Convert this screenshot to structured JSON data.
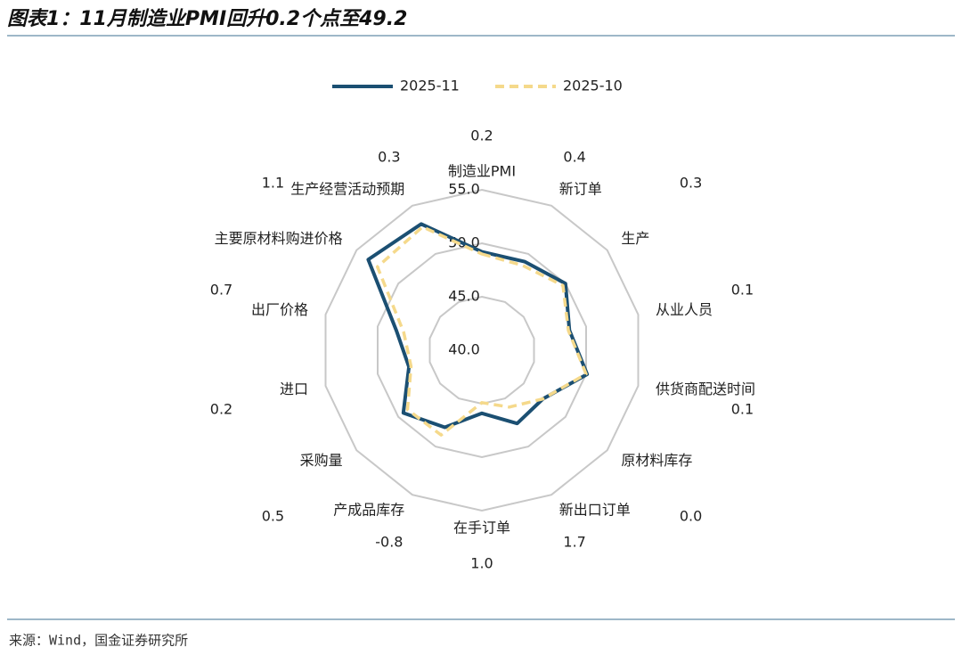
{
  "header": {
    "title": "图表1：11月制造业PMI回升0.2个点至49.2"
  },
  "chart_data": {
    "type": "radar",
    "categories": [
      "制造业PMI",
      "新订单",
      "生产",
      "从业人员",
      "供货商配送时间",
      "原材料库存",
      "新出口订单",
      "在手订单",
      "产成品库存",
      "采购量",
      "进口",
      "出厂价格",
      "主要原材料购进价格",
      "生产经营活动预期"
    ],
    "series": [
      {
        "name": "2025-11",
        "color": "#1b4f72",
        "dash": false,
        "values": [
          49.2,
          49.2,
          50.0,
          48.4,
          50.1,
          47.3,
          47.6,
          45.9,
          48.0,
          49.4,
          47.0,
          48.2,
          53.6,
          53.1
        ]
      },
      {
        "name": "2025-10",
        "color": "#f5d98b",
        "dash": true,
        "values": [
          49.0,
          48.8,
          49.7,
          48.3,
          50.0,
          47.3,
          45.9,
          44.9,
          48.8,
          48.9,
          46.8,
          47.5,
          52.5,
          52.8
        ]
      }
    ],
    "changes": [
      "0.2",
      "0.4",
      "0.3",
      "0.1",
      "0.1",
      "0.0",
      "1.7",
      "1.0",
      "-0.8",
      "0.5",
      "0.2",
      "0.7",
      "1.1",
      "0.3"
    ],
    "ylim": [
      40,
      55
    ],
    "yticks": [
      {
        "value": 40,
        "label": "40.0"
      },
      {
        "value": 45,
        "label": "45.0"
      },
      {
        "value": 50,
        "label": "50.0"
      },
      {
        "value": 55,
        "label": "55.0"
      }
    ],
    "grid": true,
    "legend": "top"
  },
  "footer": {
    "source": "来源：Wind，国金证券研究所"
  }
}
